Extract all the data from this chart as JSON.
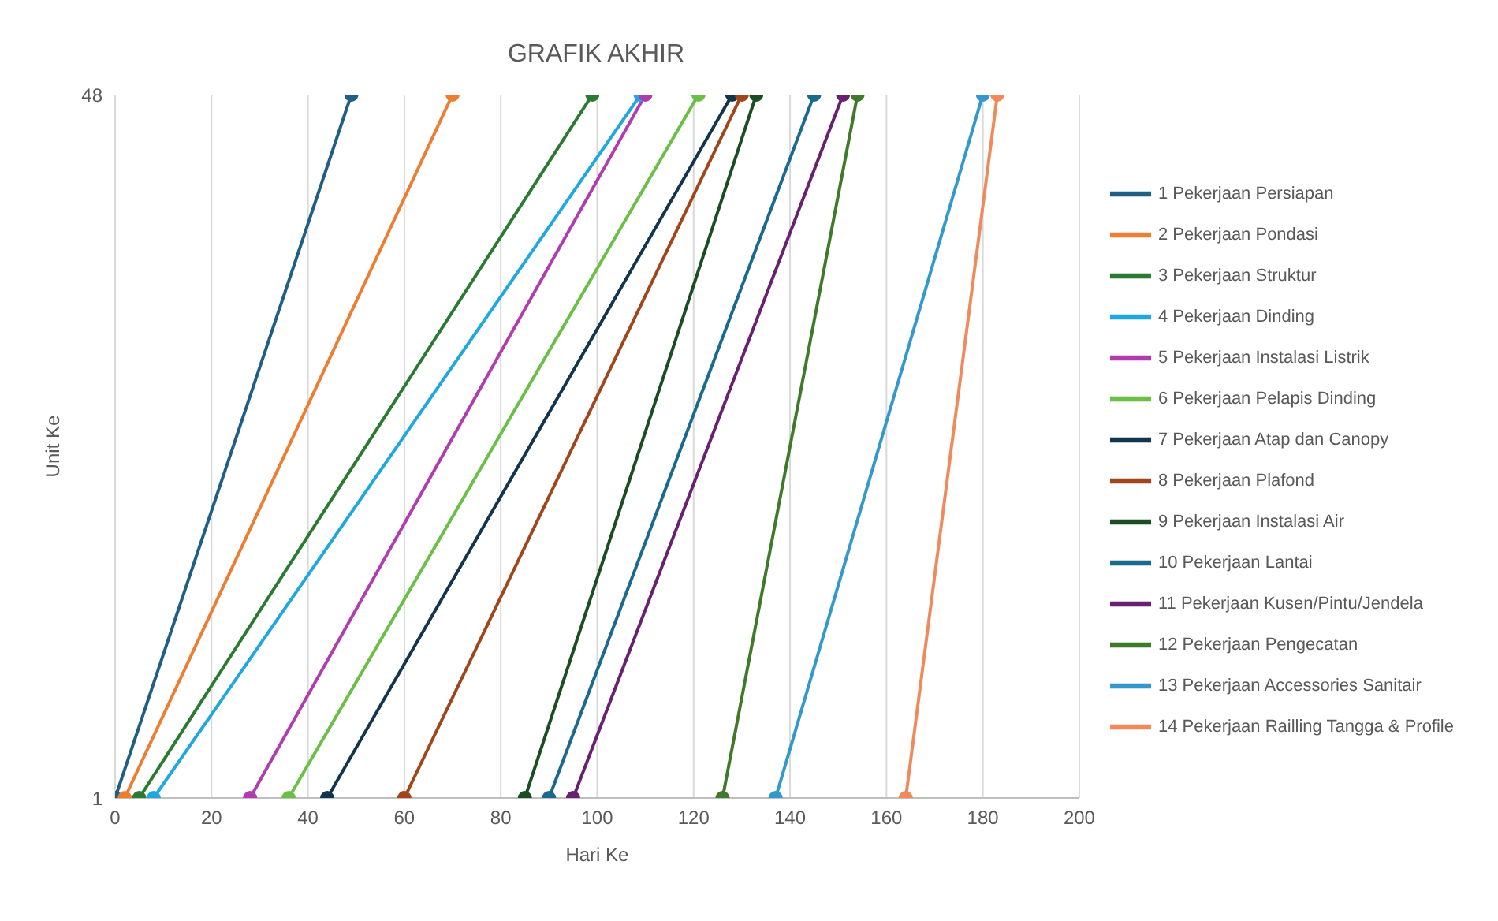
{
  "chart_data": {
    "type": "line",
    "title": "GRAFIK AKHIR",
    "xlabel": "Hari Ke",
    "ylabel": "Unit Ke",
    "xlim": [
      0,
      200
    ],
    "xticks": [
      0,
      20,
      40,
      60,
      80,
      100,
      120,
      140,
      160,
      180,
      200
    ],
    "ylim": [
      1,
      48
    ],
    "yticks": [
      1,
      48
    ],
    "grid": "x",
    "legend": "right",
    "marker": "circle",
    "line_style": "solid",
    "series": [
      {
        "name": "1 Pekerjaan Persiapan",
        "color": "#1f5f86",
        "x": [
          0,
          49
        ],
        "values": [
          1,
          48
        ]
      },
      {
        "name": "2 Pekerjaan Pondasi",
        "color": "#ed7d31",
        "x": [
          2,
          70
        ],
        "values": [
          1,
          48
        ]
      },
      {
        "name": "3 Pekerjaan Struktur",
        "color": "#2a7a32",
        "x": [
          5,
          99
        ],
        "values": [
          1,
          48
        ]
      },
      {
        "name": "4 Pekerjaan Dinding",
        "color": "#1fa8e0",
        "x": [
          8,
          109
        ],
        "values": [
          1,
          48
        ]
      },
      {
        "name": "5 Pekerjaan Instalasi Listrik",
        "color": "#b03cb0",
        "x": [
          28,
          110
        ],
        "values": [
          1,
          48
        ]
      },
      {
        "name": "6 Pekerjaan Pelapis Dinding",
        "color": "#6abf45",
        "x": [
          36,
          121
        ],
        "values": [
          1,
          48
        ]
      },
      {
        "name": "7 Pekerjaan Atap dan Canopy",
        "color": "#12354d",
        "x": [
          44,
          128
        ],
        "values": [
          1,
          48
        ]
      },
      {
        "name": "8 Pekerjaan Plafond",
        "color": "#a0461a",
        "x": [
          60,
          130
        ],
        "values": [
          1,
          48
        ]
      },
      {
        "name": "9 Pekerjaan Instalasi Air",
        "color": "#1b4d22",
        "x": [
          85,
          133
        ],
        "values": [
          1,
          48
        ]
      },
      {
        "name": "10 Pekerjaan Lantai",
        "color": "#1a6a8e",
        "x": [
          90,
          145
        ],
        "values": [
          1,
          48
        ]
      },
      {
        "name": "11 Pekerjaan Kusen/Pintu/Jendela",
        "color": "#6a2070",
        "x": [
          95,
          151
        ],
        "values": [
          1,
          48
        ]
      },
      {
        "name": "12 Pekerjaan Pengecatan",
        "color": "#3f7a2a",
        "x": [
          126,
          154
        ],
        "values": [
          1,
          48
        ]
      },
      {
        "name": "13 Pekerjaan Accessories Sanitair",
        "color": "#3399cc",
        "x": [
          137,
          180
        ],
        "values": [
          1,
          48
        ]
      },
      {
        "name": "14 Pekerjaan Railling Tangga & Profile",
        "color": "#f08a5a",
        "x": [
          164,
          183
        ],
        "values": [
          1,
          48
        ]
      }
    ]
  }
}
